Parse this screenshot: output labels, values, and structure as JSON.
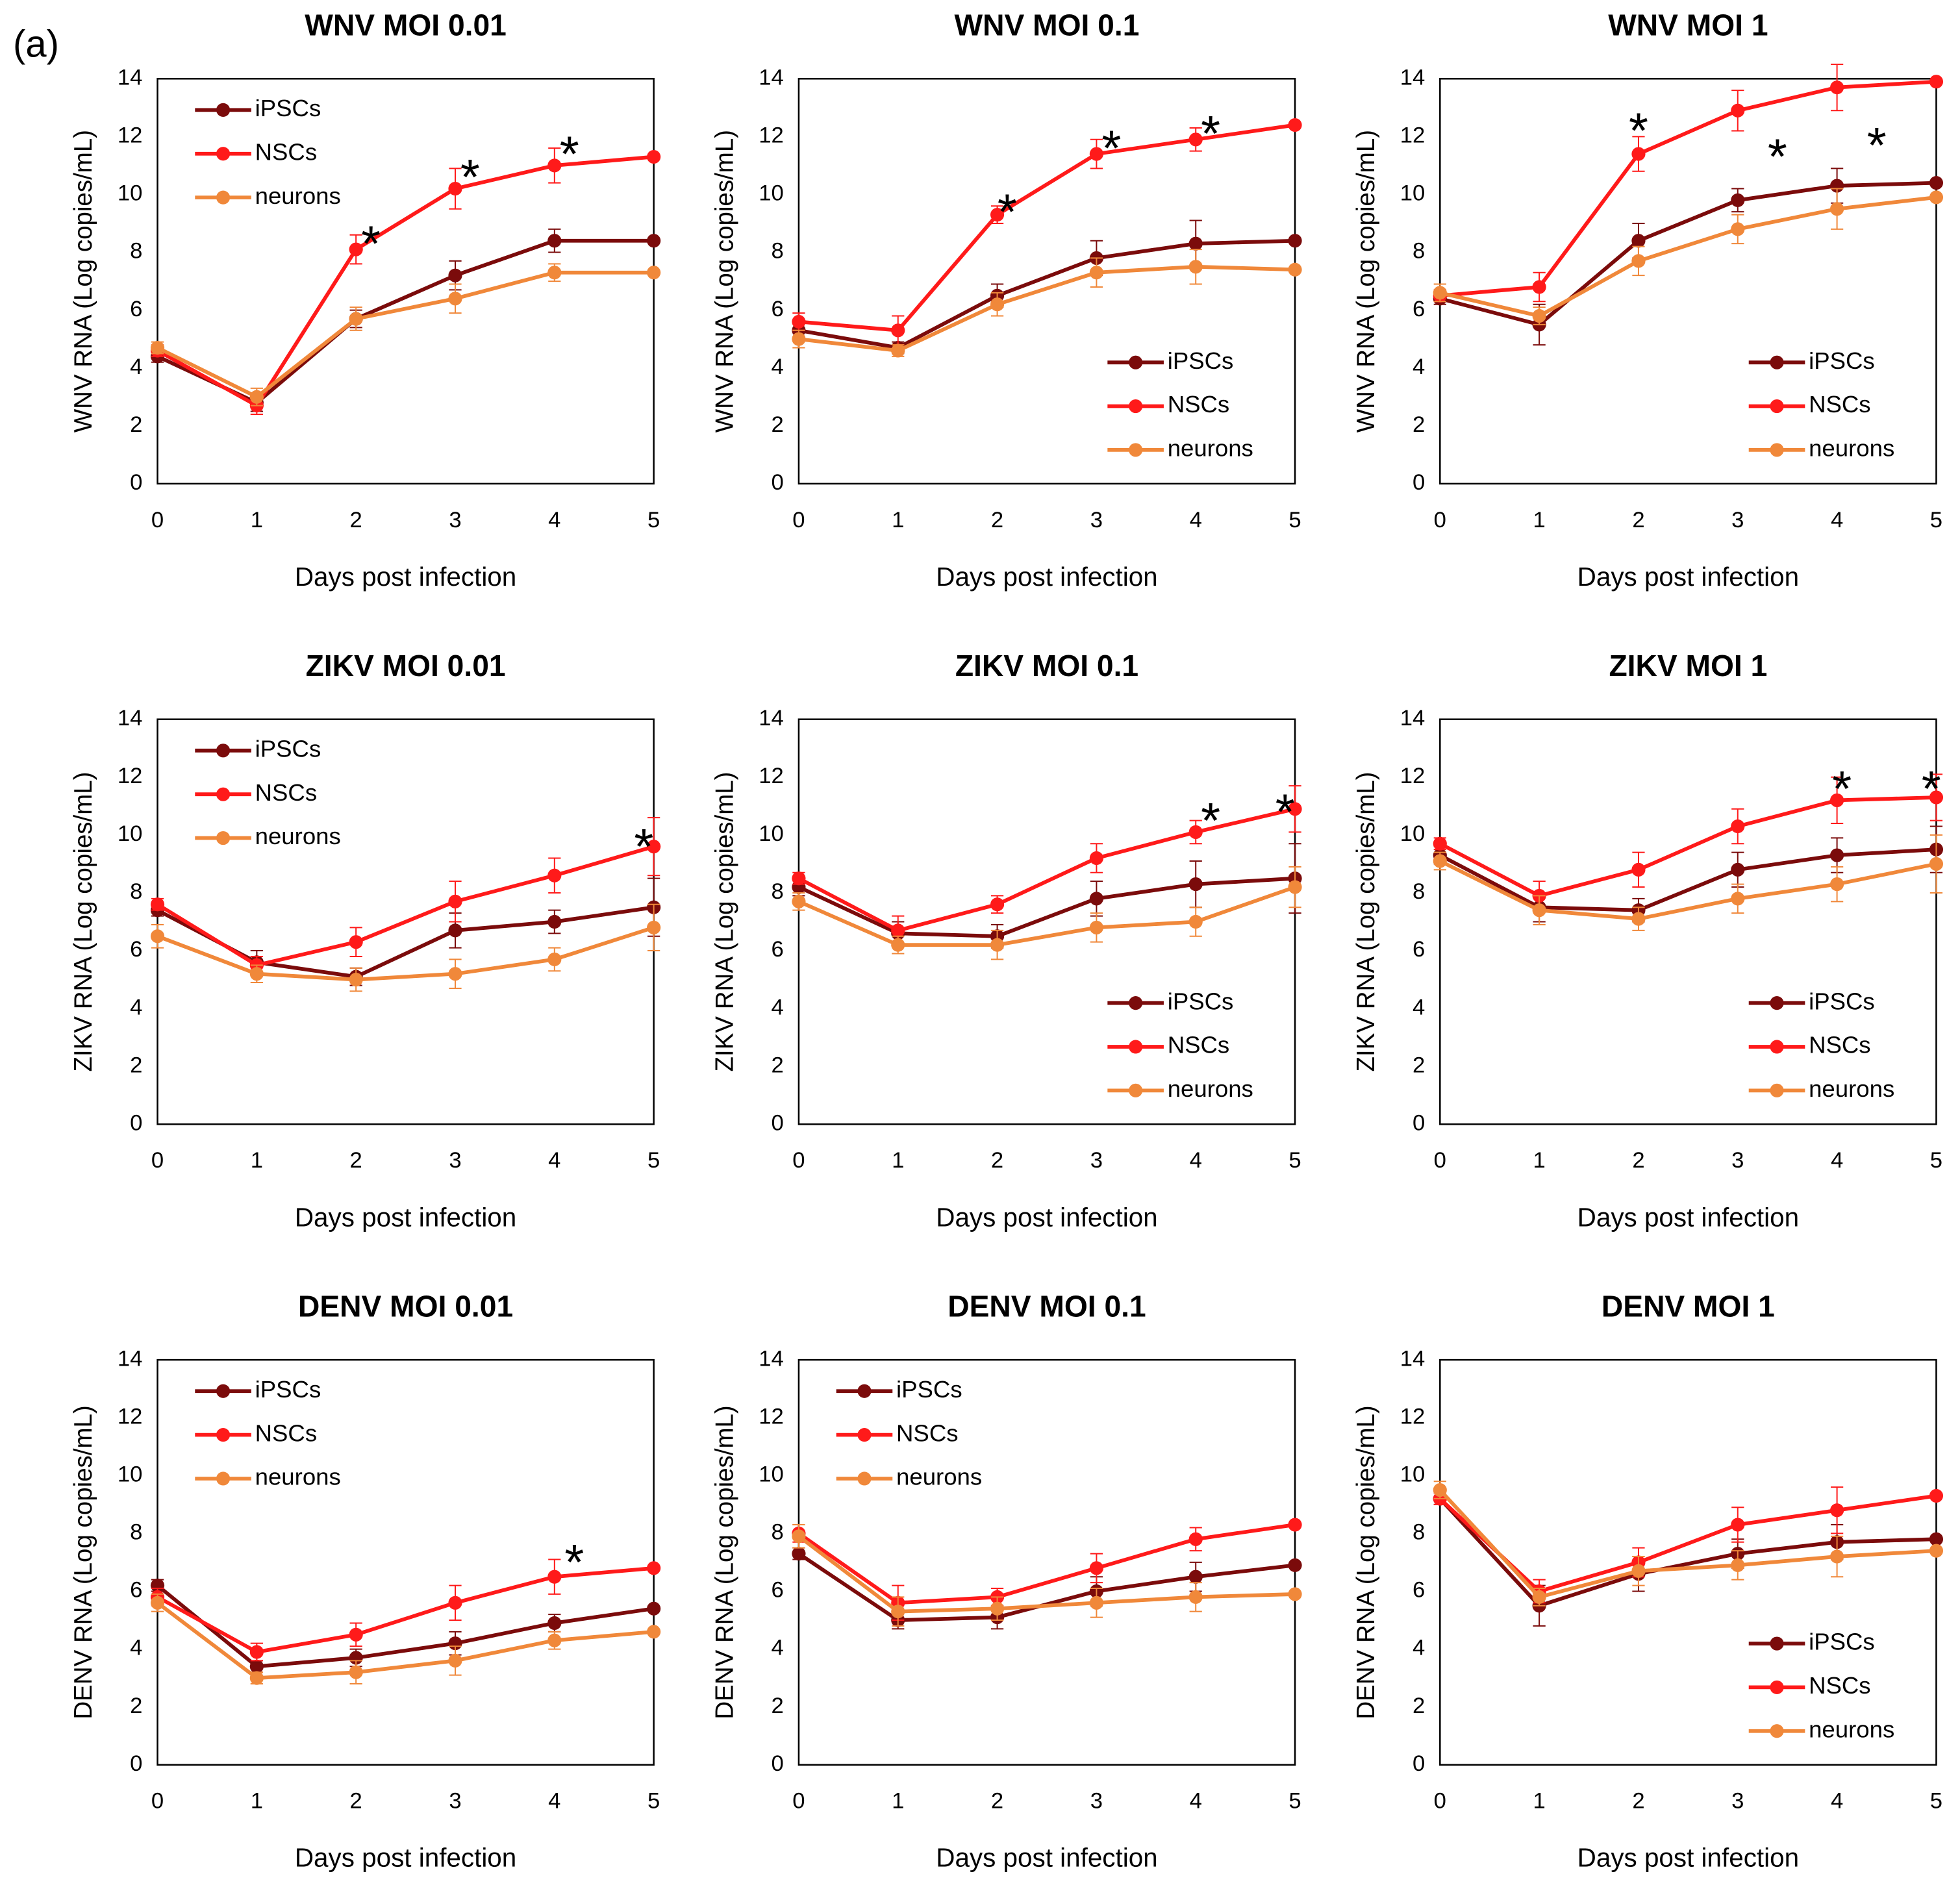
{
  "panel_label": "(a)",
  "chart_data": [
    {
      "type": "line",
      "title": "WNV MOI 0.01",
      "xlabel": "Days post infection",
      "ylabel": "WNV RNA (Log copies/mL)",
      "x": [
        0,
        1,
        2,
        3,
        4,
        5
      ],
      "xlim": [
        0,
        5
      ],
      "xticks": [
        0,
        1,
        2,
        3,
        4,
        5
      ],
      "ylim": [
        0,
        14
      ],
      "yticks": [
        0,
        2,
        4,
        6,
        8,
        10,
        12,
        14
      ],
      "grid": false,
      "legend": "upper left",
      "series": [
        {
          "name": "iPSCs",
          "color": "#7b0b0b",
          "values": [
            4.4,
            2.8,
            5.7,
            7.2,
            8.4,
            8.4
          ],
          "errors": [
            0.2,
            0.3,
            0.3,
            0.5,
            0.4,
            null
          ]
        },
        {
          "name": "NSCs",
          "color": "#ff1a1a",
          "values": [
            4.6,
            2.7,
            8.1,
            10.2,
            11.0,
            11.3
          ],
          "errors": [
            0.2,
            0.3,
            0.5,
            0.7,
            0.6,
            null
          ]
        },
        {
          "name": "neurons",
          "color": "#f0883a",
          "values": [
            4.7,
            3.0,
            5.7,
            6.4,
            7.3,
            7.3
          ],
          "errors": [
            0.2,
            0.3,
            0.4,
            0.5,
            0.3,
            null
          ]
        }
      ],
      "annotations": [
        {
          "text": "*",
          "x": 2.15,
          "y": 8.6
        },
        {
          "text": "*",
          "x": 3.15,
          "y": 10.9
        },
        {
          "text": "*",
          "x": 4.15,
          "y": 11.7
        }
      ]
    },
    {
      "type": "line",
      "title": "WNV MOI 0.1",
      "xlabel": "Days post infection",
      "ylabel": "WNV RNA (Log copies/mL)",
      "x": [
        0,
        1,
        2,
        3,
        4,
        5
      ],
      "xlim": [
        0,
        5
      ],
      "xticks": [
        0,
        1,
        2,
        3,
        4,
        5
      ],
      "ylim": [
        0,
        14
      ],
      "yticks": [
        0,
        2,
        4,
        6,
        8,
        10,
        12,
        14
      ],
      "grid": false,
      "legend": "lower right",
      "series": [
        {
          "name": "iPSCs",
          "color": "#7b0b0b",
          "values": [
            5.3,
            4.7,
            6.5,
            7.8,
            8.3,
            8.4
          ],
          "errors": [
            0.3,
            0.2,
            0.4,
            0.6,
            0.8,
            null
          ]
        },
        {
          "name": "NSCs",
          "color": "#ff1a1a",
          "values": [
            5.6,
            5.3,
            9.3,
            11.4,
            11.9,
            12.4
          ],
          "errors": [
            0.3,
            0.5,
            0.3,
            0.5,
            0.4,
            null
          ]
        },
        {
          "name": "neurons",
          "color": "#f0883a",
          "values": [
            5.0,
            4.6,
            6.2,
            7.3,
            7.5,
            7.4
          ],
          "errors": [
            0.3,
            0.2,
            0.4,
            0.5,
            0.6,
            null
          ]
        }
      ],
      "annotations": [
        {
          "text": "*",
          "x": 2.1,
          "y": 9.7
        },
        {
          "text": "*",
          "x": 3.15,
          "y": 11.9
        },
        {
          "text": "*",
          "x": 4.15,
          "y": 12.4
        }
      ]
    },
    {
      "type": "line",
      "title": "WNV MOI 1",
      "xlabel": "Days post infection",
      "ylabel": "WNV RNA (Log copies/mL)",
      "x": [
        0,
        1,
        2,
        3,
        4,
        5
      ],
      "xlim": [
        0,
        5
      ],
      "xticks": [
        0,
        1,
        2,
        3,
        4,
        5
      ],
      "ylim": [
        0,
        14
      ],
      "yticks": [
        0,
        2,
        4,
        6,
        8,
        10,
        12,
        14
      ],
      "grid": false,
      "legend": "lower right",
      "series": [
        {
          "name": "iPSCs",
          "color": "#7b0b0b",
          "values": [
            6.4,
            5.5,
            8.4,
            9.8,
            10.3,
            10.4
          ],
          "errors": [
            0.2,
            0.7,
            0.6,
            0.4,
            0.6,
            null
          ]
        },
        {
          "name": "NSCs",
          "color": "#ff1a1a",
          "values": [
            6.5,
            6.8,
            11.4,
            12.9,
            13.7,
            13.9
          ],
          "errors": [
            0.2,
            0.5,
            0.6,
            0.7,
            0.8,
            null
          ]
        },
        {
          "name": "neurons",
          "color": "#f0883a",
          "values": [
            6.6,
            5.8,
            7.7,
            8.8,
            9.5,
            9.9
          ],
          "errors": [
            0.3,
            0.3,
            0.5,
            0.5,
            0.7,
            null
          ]
        }
      ],
      "annotations": [
        {
          "text": "*",
          "x": 2.0,
          "y": 12.5
        },
        {
          "text": "*",
          "x": 3.4,
          "y": 11.6
        },
        {
          "text": "*",
          "x": 4.4,
          "y": 12.0
        }
      ]
    },
    {
      "type": "line",
      "title": "ZIKV MOI 0.01",
      "xlabel": "Days post infection",
      "ylabel": "ZIKV RNA (Log copies/mL)",
      "x": [
        0,
        1,
        2,
        3,
        4,
        5
      ],
      "xlim": [
        0,
        5
      ],
      "xticks": [
        0,
        1,
        2,
        3,
        4,
        5
      ],
      "ylim": [
        0,
        14
      ],
      "yticks": [
        0,
        2,
        4,
        6,
        8,
        10,
        12,
        14
      ],
      "grid": false,
      "legend": "upper left",
      "series": [
        {
          "name": "iPSCs",
          "color": "#7b0b0b",
          "values": [
            7.4,
            5.6,
            5.1,
            6.7,
            7.0,
            7.5
          ],
          "errors": [
            0.2,
            0.4,
            0.3,
            0.6,
            0.4,
            1.0
          ]
        },
        {
          "name": "NSCs",
          "color": "#ff1a1a",
          "values": [
            7.6,
            5.5,
            6.3,
            7.7,
            8.6,
            9.6
          ],
          "errors": [
            0.2,
            0.3,
            0.5,
            0.7,
            0.6,
            1.0
          ]
        },
        {
          "name": "neurons",
          "color": "#f0883a",
          "values": [
            6.5,
            5.2,
            5.0,
            5.2,
            5.7,
            6.8
          ],
          "errors": [
            0.4,
            0.3,
            0.4,
            0.5,
            0.4,
            0.8
          ]
        }
      ],
      "annotations": [
        {
          "text": "*",
          "x": 4.9,
          "y": 9.9
        }
      ]
    },
    {
      "type": "line",
      "title": "ZIKV MOI 0.1",
      "xlabel": "Days post infection",
      "ylabel": "ZIKV RNA (Log copies/mL)",
      "x": [
        0,
        1,
        2,
        3,
        4,
        5
      ],
      "xlim": [
        0,
        5
      ],
      "xticks": [
        0,
        1,
        2,
        3,
        4,
        5
      ],
      "ylim": [
        0,
        14
      ],
      "yticks": [
        0,
        2,
        4,
        6,
        8,
        10,
        12,
        14
      ],
      "grid": false,
      "legend": "lower right",
      "series": [
        {
          "name": "iPSCs",
          "color": "#7b0b0b",
          "values": [
            8.2,
            6.6,
            6.5,
            7.8,
            8.3,
            8.5
          ],
          "errors": [
            0.3,
            0.4,
            0.4,
            0.6,
            0.8,
            1.2
          ]
        },
        {
          "name": "NSCs",
          "color": "#ff1a1a",
          "values": [
            8.5,
            6.7,
            7.6,
            9.2,
            10.1,
            10.9
          ],
          "errors": [
            0.2,
            0.5,
            0.3,
            0.5,
            0.4,
            0.8
          ]
        },
        {
          "name": "neurons",
          "color": "#f0883a",
          "values": [
            7.7,
            6.2,
            6.2,
            6.8,
            7.0,
            8.2
          ],
          "errors": [
            0.3,
            0.3,
            0.5,
            0.5,
            0.5,
            0.7
          ]
        }
      ],
      "annotations": [
        {
          "text": "*",
          "x": 4.15,
          "y": 10.8
        },
        {
          "text": "*",
          "x": 4.9,
          "y": 11.1
        }
      ]
    },
    {
      "type": "line",
      "title": "ZIKV MOI 1",
      "xlabel": "Days post infection",
      "ylabel": "ZIKV RNA (Log copies/mL)",
      "x": [
        0,
        1,
        2,
        3,
        4,
        5
      ],
      "xlim": [
        0,
        5
      ],
      "xticks": [
        0,
        1,
        2,
        3,
        4,
        5
      ],
      "ylim": [
        0,
        14
      ],
      "yticks": [
        0,
        2,
        4,
        6,
        8,
        10,
        12,
        14
      ],
      "grid": false,
      "legend": "lower right",
      "series": [
        {
          "name": "iPSCs",
          "color": "#7b0b0b",
          "values": [
            9.3,
            7.5,
            7.4,
            8.8,
            9.3,
            9.5
          ],
          "errors": [
            0.3,
            0.5,
            0.4,
            0.6,
            0.6,
            0.8
          ]
        },
        {
          "name": "NSCs",
          "color": "#ff1a1a",
          "values": [
            9.7,
            7.9,
            8.8,
            10.3,
            11.2,
            11.3
          ],
          "errors": [
            0.2,
            0.5,
            0.6,
            0.6,
            0.8,
            0.8
          ]
        },
        {
          "name": "neurons",
          "color": "#f0883a",
          "values": [
            9.1,
            7.4,
            7.1,
            7.8,
            8.3,
            9.0
          ],
          "errors": [
            0.3,
            0.5,
            0.4,
            0.5,
            0.6,
            1.0
          ]
        }
      ],
      "annotations": [
        {
          "text": "*",
          "x": 4.05,
          "y": 11.9
        },
        {
          "text": "*",
          "x": 4.95,
          "y": 11.9
        }
      ]
    },
    {
      "type": "line",
      "title": "DENV MOI 0.01",
      "xlabel": "Days post infection",
      "ylabel": "DENV RNA (Log copies/mL)",
      "x": [
        0,
        1,
        2,
        3,
        4,
        5
      ],
      "xlim": [
        0,
        5
      ],
      "xticks": [
        0,
        1,
        2,
        3,
        4,
        5
      ],
      "ylim": [
        0,
        14
      ],
      "yticks": [
        0,
        2,
        4,
        6,
        8,
        10,
        12,
        14
      ],
      "grid": false,
      "legend": "upper left",
      "series": [
        {
          "name": "iPSCs",
          "color": "#7b0b0b",
          "values": [
            6.2,
            3.4,
            3.7,
            4.2,
            4.9,
            5.4
          ],
          "errors": [
            0.2,
            0.2,
            0.3,
            0.4,
            0.3,
            null
          ]
        },
        {
          "name": "NSCs",
          "color": "#ff1a1a",
          "values": [
            5.8,
            3.9,
            4.5,
            5.6,
            6.5,
            6.8
          ],
          "errors": [
            0.3,
            0.3,
            0.4,
            0.6,
            0.6,
            null
          ]
        },
        {
          "name": "neurons",
          "color": "#f0883a",
          "values": [
            5.6,
            3.0,
            3.2,
            3.6,
            4.3,
            4.6
          ],
          "errors": [
            0.3,
            0.2,
            0.4,
            0.5,
            0.3,
            null
          ]
        }
      ],
      "annotations": [
        {
          "text": "*",
          "x": 4.2,
          "y": 7.3
        }
      ]
    },
    {
      "type": "line",
      "title": "DENV MOI 0.1",
      "xlabel": "Days post infection",
      "ylabel": "DENV RNA (Log copies/mL)",
      "x": [
        0,
        1,
        2,
        3,
        4,
        5
      ],
      "xlim": [
        0,
        5
      ],
      "xticks": [
        0,
        1,
        2,
        3,
        4,
        5
      ],
      "ylim": [
        0,
        14
      ],
      "yticks": [
        0,
        2,
        4,
        6,
        8,
        10,
        12,
        14
      ],
      "grid": false,
      "legend": "upper left",
      "series": [
        {
          "name": "iPSCs",
          "color": "#7b0b0b",
          "values": [
            7.3,
            5.0,
            5.1,
            6.0,
            6.5,
            6.9
          ],
          "errors": [
            0.2,
            0.3,
            0.4,
            0.5,
            0.5,
            null
          ]
        },
        {
          "name": "NSCs",
          "color": "#ff1a1a",
          "values": [
            8.0,
            5.6,
            5.8,
            6.8,
            7.8,
            8.3
          ],
          "errors": [
            0.3,
            0.6,
            0.3,
            0.5,
            0.4,
            null
          ]
        },
        {
          "name": "neurons",
          "color": "#f0883a",
          "values": [
            7.9,
            5.3,
            5.4,
            5.6,
            5.8,
            5.9
          ],
          "errors": [
            0.4,
            0.5,
            0.4,
            0.5,
            0.5,
            null
          ]
        }
      ],
      "annotations": []
    },
    {
      "type": "line",
      "title": "DENV MOI 1",
      "xlabel": "Days post infection",
      "ylabel": "DENV RNA (Log copies/mL)",
      "x": [
        0,
        1,
        2,
        3,
        4,
        5
      ],
      "xlim": [
        0,
        5
      ],
      "xticks": [
        0,
        1,
        2,
        3,
        4,
        5
      ],
      "ylim": [
        0,
        14
      ],
      "yticks": [
        0,
        2,
        4,
        6,
        8,
        10,
        12,
        14
      ],
      "grid": false,
      "legend": "lower right",
      "series": [
        {
          "name": "iPSCs",
          "color": "#7b0b0b",
          "values": [
            9.2,
            5.5,
            6.6,
            7.3,
            7.7,
            7.8
          ],
          "errors": [
            0.2,
            0.7,
            0.6,
            0.5,
            0.6,
            null
          ]
        },
        {
          "name": "NSCs",
          "color": "#ff1a1a",
          "values": [
            9.2,
            6.0,
            7.0,
            8.3,
            8.8,
            9.3
          ],
          "errors": [
            0.2,
            0.4,
            0.5,
            0.6,
            0.8,
            null
          ]
        },
        {
          "name": "neurons",
          "color": "#f0883a",
          "values": [
            9.5,
            5.8,
            6.7,
            6.9,
            7.2,
            7.4
          ],
          "errors": [
            0.3,
            0.3,
            0.5,
            0.5,
            0.7,
            null
          ]
        }
      ],
      "annotations": []
    }
  ]
}
